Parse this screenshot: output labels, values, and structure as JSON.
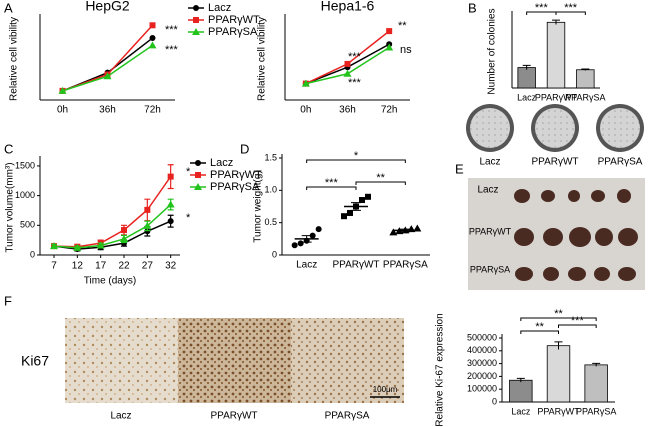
{
  "panel_labels": [
    "A",
    "B",
    "C",
    "D",
    "E",
    "F"
  ],
  "chart_data": [
    {
      "type": "line",
      "title": "HepG2",
      "ylabel": "Relative cell vibility",
      "categories": [
        "0h",
        "36h",
        "72h"
      ],
      "ylim": [
        0.5,
        5
      ],
      "legend": true,
      "series": [
        {
          "name": "Lacz",
          "color": "#000000",
          "values": [
            1,
            2,
            3.9
          ]
        },
        {
          "name": "PPARγWT",
          "color": "#e8221f",
          "values": [
            1,
            1.9,
            4.6
          ]
        },
        {
          "name": "PPARγSA",
          "color": "#22c41c",
          "values": [
            1,
            1.8,
            3.5
          ]
        }
      ],
      "annotations": [
        "***",
        "***"
      ]
    },
    {
      "type": "line",
      "title": "Hepa1-6",
      "ylabel": "Relative cell vibility",
      "categories": [
        "0h",
        "36h",
        "72h"
      ],
      "ylim": [
        0.5,
        3
      ],
      "series": [
        {
          "color": "#000000",
          "values": [
            1,
            1.5,
            2.2
          ]
        },
        {
          "color": "#e8221f",
          "values": [
            1,
            1.6,
            2.6
          ]
        },
        {
          "color": "#22c41c",
          "values": [
            1,
            1.3,
            2.1
          ]
        }
      ],
      "annotations": [
        "**",
        "***",
        "ns",
        "***"
      ]
    },
    {
      "type": "bar",
      "ylabel": "Number of colonies",
      "categories": [
        "Lacz",
        "PPARγWT",
        "PPARγSA"
      ],
      "values": [
        28,
        90,
        25
      ],
      "errors": [
        3,
        3,
        1
      ],
      "colors": [
        "#8c8c8c",
        "#d9d9d9",
        "#bfbfbf"
      ],
      "ylim": [
        0,
        100
      ],
      "annotations": [
        "***",
        "***"
      ]
    },
    {
      "type": "line",
      "xlabel": "Time (days)",
      "ylabel": "Tumor volume(mm³)",
      "x": [
        7,
        12,
        17,
        22,
        27,
        32
      ],
      "xlim": [
        4,
        34
      ],
      "xticks": [
        7,
        12,
        17,
        22,
        27,
        32
      ],
      "ylim": [
        0,
        1600
      ],
      "yticks": [
        0,
        500,
        1000,
        1500
      ],
      "legend": true,
      "series": [
        {
          "name": "Lacz",
          "color": "#000000",
          "values": [
            150,
            100,
            130,
            200,
            400,
            570
          ],
          "errors": [
            30,
            30,
            40,
            50,
            80,
            100
          ]
        },
        {
          "name": "PPARγWT",
          "color": "#e8221f",
          "values": [
            150,
            140,
            200,
            420,
            760,
            1320
          ],
          "errors": [
            30,
            30,
            50,
            80,
            180,
            200
          ]
        },
        {
          "name": "PPARγSA",
          "color": "#22c41c",
          "values": [
            150,
            120,
            160,
            270,
            490,
            850
          ],
          "errors": [
            30,
            30,
            40,
            60,
            80,
            90
          ]
        }
      ],
      "annotations": [
        "*",
        "*"
      ]
    },
    {
      "type": "scatter",
      "ylabel": "Tumor weight(g)",
      "categories": [
        "Lacz",
        "PPARγWT",
        "PPARγSA"
      ],
      "points": [
        [
          0.15,
          0.18,
          0.22,
          0.3,
          0.4
        ],
        [
          0.6,
          0.65,
          0.75,
          0.85,
          0.9
        ],
        [
          0.35,
          0.37,
          0.38,
          0.4,
          0.41
        ]
      ],
      "means": [
        0.25,
        0.75,
        0.38
      ],
      "errors": [
        0.05,
        0.06,
        0.02
      ],
      "color": "#000000",
      "ylim": [
        0,
        1.5
      ],
      "yticks": [
        0,
        0.5,
        {
          "value": 1,
          "label": "1.0"
        },
        1.5
      ],
      "annotations": [
        "*",
        "***",
        "**"
      ]
    },
    {
      "type": "bar",
      "ylabel": "Relative Ki-67 expression",
      "categories": [
        "Lacz",
        "PPARγWT",
        "PPARγSA"
      ],
      "values": [
        170000,
        440000,
        290000
      ],
      "errors": [
        15000,
        30000,
        12000
      ],
      "colors": [
        "#8c8c8c",
        "#d9d9d9",
        "#bfbfbf"
      ],
      "ylim": [
        0,
        500000
      ],
      "yticks": [
        0,
        100000,
        200000,
        300000,
        400000,
        500000
      ],
      "annotations": [
        "**",
        "***",
        "**"
      ]
    }
  ],
  "colony_plate_labels": [
    "Lacz",
    "PPARγWT",
    "PPARγSA"
  ],
  "tumor_photo_labels": [
    "Lacz",
    "PPARγWT",
    "PPARγSA"
  ],
  "stain_label": "Ki67",
  "scale_bar": "100μm",
  "stain_image_labels": [
    "Lacz",
    "PPARγWT",
    "PPARγSA"
  ]
}
